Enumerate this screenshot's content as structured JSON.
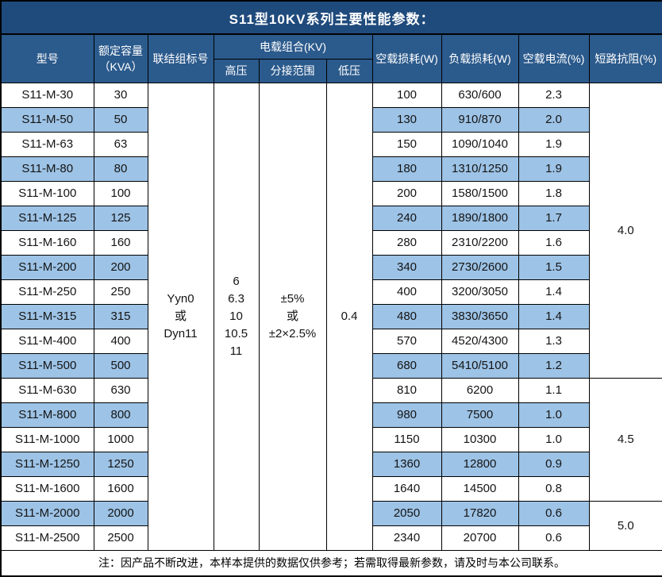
{
  "title": "S11型10KV系列主要性能参数：",
  "columns": {
    "model": "型号",
    "capacity_line1": "额定容量",
    "capacity_line2": "（KVA）",
    "connection": "联结组标号",
    "voltage_group": "电载组合(KV)",
    "high_voltage": "高压",
    "tap_range": "分接范围",
    "low_voltage": "低压",
    "no_load_loss": "空载损耗(W)",
    "load_loss": "负载损耗(W)",
    "no_load_current": "空载电流(%)",
    "impedance": "短路抗阻(%)"
  },
  "merged": {
    "connection_lines": [
      "Yyn0",
      "或",
      "Dyn11"
    ],
    "high_voltage_lines": [
      "6",
      "6.3",
      "10",
      "10.5",
      "11"
    ],
    "tap_range_lines": [
      "±5%",
      "或",
      "±2×2.5%"
    ],
    "low_voltage": "0.4",
    "impedance_groups": [
      {
        "value": "4.0",
        "span": 12
      },
      {
        "value": "4.5",
        "span": 5
      },
      {
        "value": "5.0",
        "span": 2
      }
    ]
  },
  "rows": [
    {
      "model": "S11-M-30",
      "capacity": "30",
      "no_load_loss": "100",
      "load_loss": "630/600",
      "no_load_current": "2.3"
    },
    {
      "model": "S11-M-50",
      "capacity": "50",
      "no_load_loss": "130",
      "load_loss": "910/870",
      "no_load_current": "2.0"
    },
    {
      "model": "S11-M-63",
      "capacity": "63",
      "no_load_loss": "150",
      "load_loss": "1090/1040",
      "no_load_current": "1.9"
    },
    {
      "model": "S11-M-80",
      "capacity": "80",
      "no_load_loss": "180",
      "load_loss": "1310/1250",
      "no_load_current": "1.9"
    },
    {
      "model": "S11-M-100",
      "capacity": "100",
      "no_load_loss": "200",
      "load_loss": "1580/1500",
      "no_load_current": "1.8"
    },
    {
      "model": "S11-M-125",
      "capacity": "125",
      "no_load_loss": "240",
      "load_loss": "1890/1800",
      "no_load_current": "1.7"
    },
    {
      "model": "S11-M-160",
      "capacity": "160",
      "no_load_loss": "280",
      "load_loss": "2310/2200",
      "no_load_current": "1.6"
    },
    {
      "model": "S11-M-200",
      "capacity": "200",
      "no_load_loss": "340",
      "load_loss": "2730/2600",
      "no_load_current": "1.5"
    },
    {
      "model": "S11-M-250",
      "capacity": "250",
      "no_load_loss": "400",
      "load_loss": "3200/3050",
      "no_load_current": "1.4"
    },
    {
      "model": "S11-M-315",
      "capacity": "315",
      "no_load_loss": "480",
      "load_loss": "3830/3650",
      "no_load_current": "1.4"
    },
    {
      "model": "S11-M-400",
      "capacity": "400",
      "no_load_loss": "570",
      "load_loss": "4520/4300",
      "no_load_current": "1.3"
    },
    {
      "model": "S11-M-500",
      "capacity": "500",
      "no_load_loss": "680",
      "load_loss": "5410/5100",
      "no_load_current": "1.2"
    },
    {
      "model": "S11-M-630",
      "capacity": "630",
      "no_load_loss": "810",
      "load_loss": "6200",
      "no_load_current": "1.1"
    },
    {
      "model": "S11-M-800",
      "capacity": "800",
      "no_load_loss": "980",
      "load_loss": "7500",
      "no_load_current": "1.0"
    },
    {
      "model": "S11-M-1000",
      "capacity": "1000",
      "no_load_loss": "1150",
      "load_loss": "10300",
      "no_load_current": "1.0"
    },
    {
      "model": "S11-M-1250",
      "capacity": "1250",
      "no_load_loss": "1360",
      "load_loss": "12800",
      "no_load_current": "0.9"
    },
    {
      "model": "S11-M-1600",
      "capacity": "1600",
      "no_load_loss": "1640",
      "load_loss": "14500",
      "no_load_current": "0.8"
    },
    {
      "model": "S11-M-2000",
      "capacity": "2000",
      "no_load_loss": "2050",
      "load_loss": "17820",
      "no_load_current": "0.6"
    },
    {
      "model": "S11-M-2500",
      "capacity": "2500",
      "no_load_loss": "2340",
      "load_loss": "20700",
      "no_load_current": "0.6"
    }
  ],
  "note": "注：因产品不断改进，本样本提供的数据仅供参考；若需取得最新参数，请及时与本公司联系。",
  "colors": {
    "title_bg": "#1F4A7C",
    "header_bg": "#2B5A8C",
    "stripe_bg": "#9DC3E6",
    "border": "#000000",
    "header_text": "#FFFFFF",
    "body_text": "#141414"
  }
}
